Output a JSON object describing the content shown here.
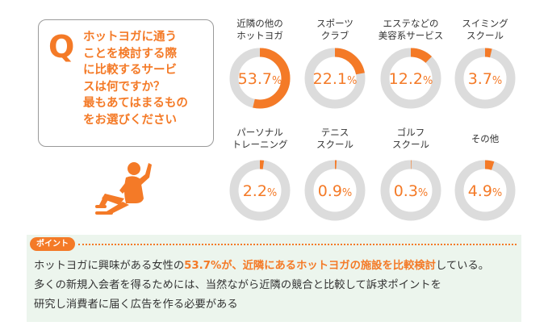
{
  "question": {
    "letter": "Q",
    "lines": [
      "ホットヨガに通う",
      "ことを検討する際",
      "に比較するサービ",
      "スは何ですか？",
      "最もあてはまるもの",
      "をお選びください"
    ]
  },
  "colors": {
    "accent": "#f47a27",
    "track": "#dcdcdc",
    "point_bg": "#ecf5ed"
  },
  "chart_data": {
    "type": "donut",
    "unit": "%",
    "categories": [
      {
        "label_lines": [
          "近隣の他の",
          "ホットヨガ"
        ],
        "value": 53.7
      },
      {
        "label_lines": [
          "スポーツ",
          "クラブ"
        ],
        "value": 22.1
      },
      {
        "label_lines": [
          "エステなどの",
          "美容系サービス"
        ],
        "value": 12.2
      },
      {
        "label_lines": [
          "スイミング",
          "スクール"
        ],
        "value": 3.7
      },
      {
        "label_lines": [
          "パーソナル",
          "トレーニング"
        ],
        "value": 2.2
      },
      {
        "label_lines": [
          "テニス",
          "スクール"
        ],
        "value": 0.9
      },
      {
        "label_lines": [
          "ゴルフ",
          "スクール"
        ],
        "value": 0.3
      },
      {
        "label_lines": [
          "その他"
        ],
        "value": 4.9
      }
    ]
  },
  "point": {
    "badge": "ポイント",
    "line1_pre": "ホットヨガに興味がある女性の",
    "line1_hl": "53.7%が、近隣にあるホットヨガの施設を比較検討",
    "line1_post": "している。",
    "line2": "多くの新規入会者を得るためには、当然ながら近隣の競合と比較して訴求ポイントを",
    "line3": "研究し消費者に届く広告を作る必要がある"
  }
}
